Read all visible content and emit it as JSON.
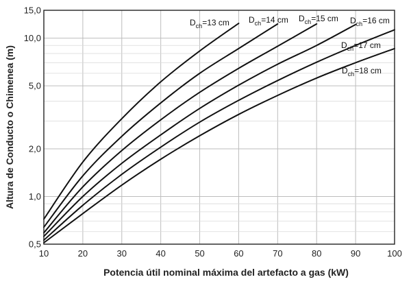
{
  "chart_data": {
    "type": "line",
    "xlabel": "Potencia útil nominal máxima del artefacto a gas  (kW)",
    "ylabel": "Altura de Conducto o Chimenea  (m)",
    "xlim": [
      10,
      100
    ],
    "ylim": [
      0.5,
      15.0
    ],
    "yscale": "log",
    "grid": true,
    "x_ticks": [
      10,
      20,
      30,
      40,
      50,
      60,
      70,
      80,
      90,
      100
    ],
    "x_tick_labels": [
      "10",
      "20",
      "30",
      "40",
      "50",
      "60",
      "70",
      "80",
      "90",
      "100"
    ],
    "y_ticks": [
      0.5,
      1.0,
      2.0,
      5.0,
      10.0,
      15.0
    ],
    "y_tick_labels": [
      "0,5",
      "1,0",
      "2,0",
      "5,0",
      "10,0",
      "15,0"
    ],
    "y_minor_grid": [
      0.6,
      0.7,
      0.8,
      0.9,
      3,
      4,
      6,
      7,
      8,
      9
    ],
    "series": [
      {
        "label_main": "D",
        "label_sub": "ch",
        "label_rest": "=13 cm",
        "x": [
          10,
          20,
          30,
          40,
          50,
          60
        ],
        "y": [
          0.72,
          1.65,
          3.1,
          5.3,
          8.3,
          12.4
        ]
      },
      {
        "label_main": "D",
        "label_sub": "ch",
        "label_rest": "=14 cm",
        "x": [
          10,
          20,
          30,
          40,
          50,
          60,
          70
        ],
        "y": [
          0.64,
          1.35,
          2.4,
          3.9,
          6.0,
          8.6,
          12.3
        ]
      },
      {
        "label_main": "D",
        "label_sub": "ch",
        "label_rest": "=15 cm",
        "x": [
          10,
          20,
          30,
          40,
          50,
          60,
          70,
          80
        ],
        "y": [
          0.59,
          1.15,
          1.95,
          3.05,
          4.55,
          6.45,
          8.9,
          12.3
        ]
      },
      {
        "label_main": "D",
        "label_sub": "ch",
        "label_rest": "=16 cm",
        "x": [
          10,
          20,
          30,
          40,
          50,
          60,
          70,
          80,
          90
        ],
        "y": [
          0.56,
          1.0,
          1.62,
          2.45,
          3.6,
          5.05,
          6.85,
          9.0,
          12.2
        ]
      },
      {
        "label_main": "D",
        "label_sub": "ch",
        "label_rest": "=17 cm",
        "x": [
          10,
          20,
          30,
          40,
          50,
          60,
          70,
          80,
          90,
          100
        ],
        "y": [
          0.53,
          0.88,
          1.38,
          2.05,
          2.95,
          4.05,
          5.4,
          7.05,
          9.0,
          11.3
        ]
      },
      {
        "label_main": "D",
        "label_sub": "ch",
        "label_rest": "=18 cm",
        "x": [
          10,
          20,
          30,
          40,
          50,
          60,
          70,
          80,
          90,
          100
        ],
        "y": [
          0.51,
          0.78,
          1.18,
          1.72,
          2.42,
          3.3,
          4.35,
          5.6,
          7.0,
          8.6
        ]
      }
    ]
  }
}
